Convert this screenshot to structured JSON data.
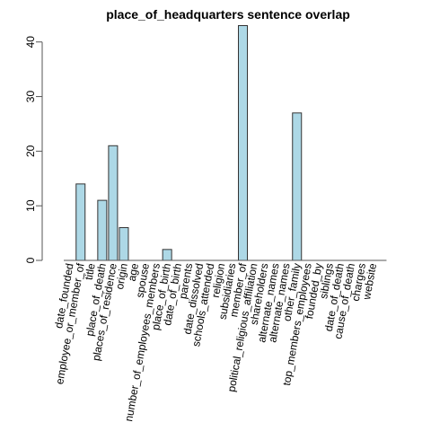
{
  "chart_data": {
    "type": "bar",
    "title": "place_of_headquarters sentence overlap",
    "xlabel": "",
    "ylabel": "",
    "ylim": [
      0,
      43
    ],
    "yticks": [
      0,
      10,
      20,
      30,
      40
    ],
    "grid": false,
    "legend": "none",
    "bar_color": "#add8e6",
    "bar_border_color": "#333333",
    "axis_color": "#555555",
    "category_label_rotation_deg": -80,
    "categories": [
      "date_founded",
      "employee_or_member_of",
      "title",
      "place_of_death",
      "places_of_residence",
      "origin",
      "age",
      "spouse",
      "number_of_employees_members",
      "place_of_birth",
      "date_of_birth",
      "parents",
      "date_dissolved",
      "schools_attended",
      "religion",
      "subsidiaries",
      "member_of",
      "political_religious_affiliation",
      "shareholders",
      "alternate_names",
      "alternate_names",
      "other_family",
      "top_members_employees",
      "founded_by",
      "siblings",
      "date_of_death",
      "cause_of_death",
      "charges",
      "website"
    ],
    "values": [
      0,
      14,
      0,
      11,
      21,
      6,
      0,
      0,
      0,
      2,
      0,
      0,
      0,
      0,
      0,
      0,
      43,
      0,
      0,
      0,
      0,
      27,
      0,
      0,
      0,
      0,
      0,
      0,
      0
    ]
  }
}
